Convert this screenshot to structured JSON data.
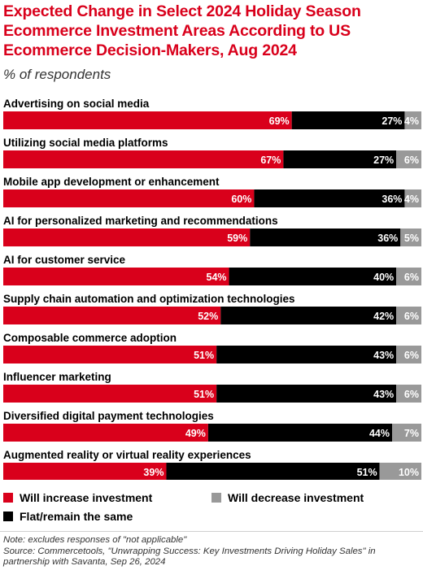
{
  "title": "Expected Change in Select 2024 Holiday Season Ecommerce Investment Areas According to US Ecommerce Decision-Makers, Aug 2024",
  "subtitle": "% of respondents",
  "colors": {
    "increase": "#d9001b",
    "flat": "#000000",
    "decrease": "#999999"
  },
  "chart_data": {
    "type": "bar",
    "orientation": "horizontal",
    "stacked": true,
    "value_suffix": "%",
    "categories": [
      "Advertising on social media",
      "Utilizing social media platforms",
      "Mobile app development or enhancement",
      "AI for personalized marketing and recommendations",
      "AI for customer service",
      "Supply chain automation and optimization technologies",
      "Composable commerce adoption",
      "Influencer marketing",
      "Diversified digital payment technologies",
      "Augmented reality or virtual reality experiences"
    ],
    "series": [
      {
        "name": "Will increase investment",
        "color": "#d9001b",
        "values": [
          69,
          67,
          60,
          59,
          54,
          52,
          51,
          51,
          49,
          39
        ]
      },
      {
        "name": "Flat/remain the same",
        "color": "#000000",
        "values": [
          27,
          27,
          36,
          36,
          40,
          42,
          43,
          43,
          44,
          51
        ]
      },
      {
        "name": "Will decrease investment",
        "color": "#999999",
        "values": [
          4,
          6,
          4,
          5,
          6,
          6,
          6,
          6,
          7,
          10
        ]
      }
    ],
    "legend": {
      "position": "bottom",
      "columns": 2
    }
  },
  "legend_labels": {
    "increase": "Will increase investment",
    "decrease": "Will decrease investment",
    "flat": "Flat/remain the same"
  },
  "footnote": {
    "note": "Note: excludes responses of \"not applicable\"",
    "source": "Source: Commercetools, \"Unwrapping Success: Key Investments Driving Holiday Sales\" in partnership with Savanta, Sep 26, 2024"
  }
}
